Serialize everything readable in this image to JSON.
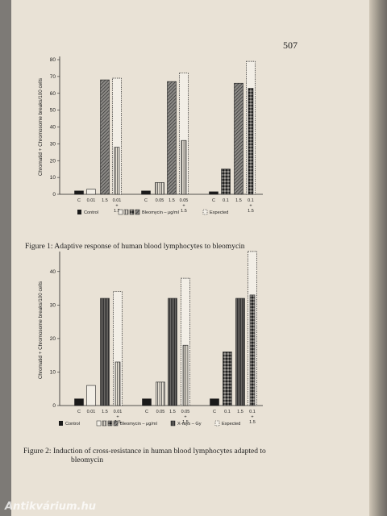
{
  "page_number": "507",
  "figure1_caption": "Figure 1: Adaptive response of human blood lymphocytes to bleomycin",
  "figure2_caption_line1": "Figure 2: Induction of cross-resistance in human blood lymphocytes adapted to",
  "figure2_caption_line2": "bleomycin",
  "watermark": "Antikvárium.hu",
  "chart_data": [
    {
      "type": "bar",
      "ylabel": "Chromatid + Chromosome breaks/100 cells",
      "ylim": [
        0,
        80
      ],
      "yticks": [
        0,
        10,
        20,
        30,
        40,
        50,
        60,
        70,
        80
      ],
      "categories": [
        "C",
        "0.01",
        "1.5",
        "0.01\n+\n1.5",
        "C",
        "0.05",
        "1.5",
        "0.05\n+\n1.5",
        "C",
        "0.1",
        "1.5",
        "0.1\n+\n1.5"
      ],
      "values": [
        2,
        3,
        68,
        28,
        2,
        7,
        67,
        32,
        1.5,
        15,
        66,
        63
      ],
      "expected": [
        null,
        null,
        null,
        69,
        null,
        null,
        null,
        72,
        null,
        null,
        null,
        79
      ],
      "bar_styles": [
        "control",
        "white",
        "diag",
        "vert",
        "control",
        "vert",
        "diag",
        "vert",
        "control",
        "check",
        "diag",
        "check"
      ],
      "legend": [
        {
          "style": "control",
          "label": "Control"
        },
        {
          "style": "bleo-set",
          "label": "Bleomycin – μg/ml"
        },
        {
          "style": "expected",
          "label": "Expected"
        }
      ]
    },
    {
      "type": "bar",
      "ylabel": "Chromatid + Chromosome breaks/100 cells",
      "ylim": [
        0,
        45
      ],
      "yticks": [
        0,
        10,
        20,
        30,
        40
      ],
      "categories": [
        "C",
        "0.01",
        "1.5",
        "0.01\n+\n1.5",
        "C",
        "0.05",
        "1.5",
        "0.05\n+\n1.5",
        "C",
        "0.1",
        "1.5",
        "0.1\n+\n1.5"
      ],
      "values": [
        2,
        6,
        32,
        13,
        2,
        7,
        32,
        18,
        2,
        16,
        32,
        33
      ],
      "expected": [
        null,
        null,
        null,
        34,
        null,
        null,
        null,
        38,
        null,
        null,
        null,
        46
      ],
      "bar_styles": [
        "control",
        "white",
        "dark",
        "vert",
        "control",
        "vert",
        "dark",
        "vert",
        "control",
        "check",
        "dark",
        "check"
      ],
      "legend": [
        {
          "style": "control",
          "label": "Control"
        },
        {
          "style": "bleo-set",
          "label": "Bleomycin – μg/ml"
        },
        {
          "style": "xray",
          "label": "X-rays – Gy"
        },
        {
          "style": "expected",
          "label": "Expected"
        }
      ]
    }
  ]
}
